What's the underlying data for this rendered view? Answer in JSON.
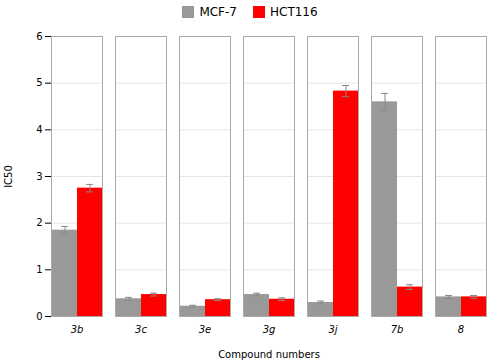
{
  "chart_data": {
    "type": "bar",
    "categories": [
      "3b",
      "3c",
      "3e",
      "3g",
      "3j",
      "7b",
      "8"
    ],
    "series": [
      {
        "name": "MCF-7",
        "color": "#999999",
        "values": [
          1.85,
          0.38,
          0.22,
          0.47,
          0.3,
          4.6,
          0.42
        ],
        "errors": [
          0.08,
          0.03,
          0.02,
          0.03,
          0.03,
          0.18,
          0.03
        ]
      },
      {
        "name": "HCT116",
        "color": "#ff0000",
        "values": [
          2.75,
          0.47,
          0.36,
          0.37,
          4.83,
          0.63,
          0.42
        ],
        "errors": [
          0.08,
          0.03,
          0.02,
          0.03,
          0.12,
          0.05,
          0.03
        ]
      }
    ],
    "xlabel": "Compound numbers",
    "ylabel": "IC50",
    "ylim": [
      0,
      6
    ],
    "yticks": [
      0,
      1,
      2,
      3,
      4,
      5,
      6
    ],
    "grid": true,
    "legend": "top"
  }
}
